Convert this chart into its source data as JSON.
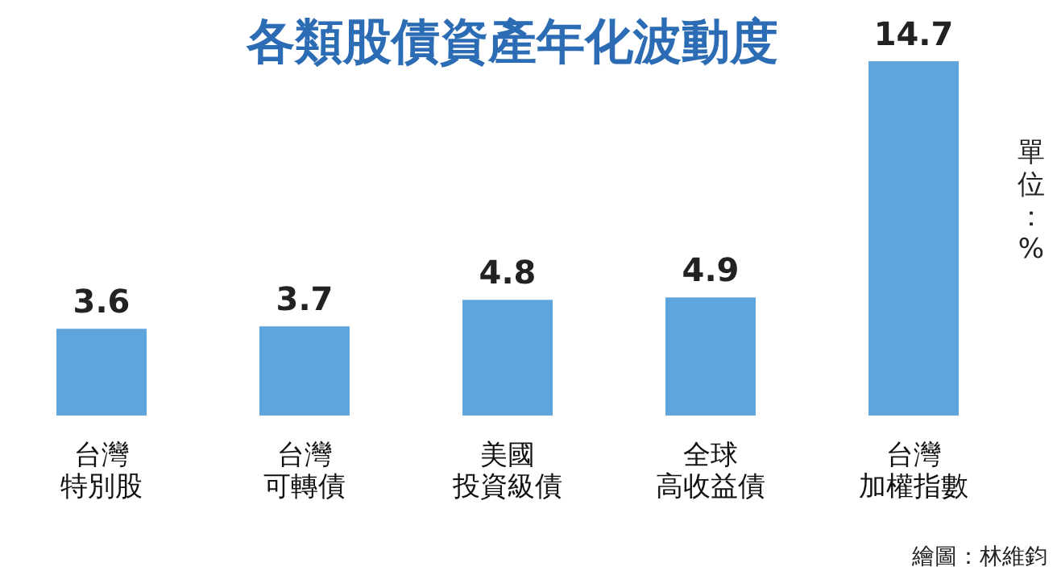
{
  "chart_data": {
    "type": "bar",
    "title": "各類股債資產年化波動度",
    "categories": [
      "台灣特別股",
      "台灣可轉債",
      "美國投資級債",
      "全球高收益債",
      "台灣加權指數"
    ],
    "values": [
      3.6,
      3.7,
      4.8,
      4.9,
      14.7
    ],
    "color": "#5ea5de",
    "data_labels": true,
    "annotations": [
      "單位：%",
      "繪圖：林維鈞"
    ]
  }
}
